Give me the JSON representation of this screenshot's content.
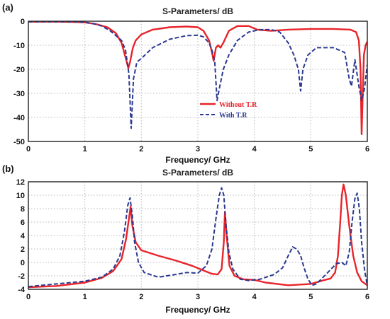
{
  "chart_data": [
    {
      "panel_label": "(a)",
      "type": "line",
      "title": "S-Parameters/ dB",
      "xlabel": "Frequency/ GHz",
      "ylabel": "",
      "xlim": [
        0,
        6
      ],
      "ylim": [
        -50,
        0
      ],
      "xticks": [
        "0",
        "1",
        "2",
        "3",
        "4",
        "5",
        "6"
      ],
      "yticks": [
        "0",
        "-10",
        "-20",
        "-30",
        "-40",
        "-50"
      ],
      "xtick_values": [
        0,
        1,
        2,
        3,
        4,
        5,
        6
      ],
      "ytick_values": [
        0,
        -10,
        -20,
        -30,
        -40,
        -50
      ],
      "grid": true,
      "legend_position": "center-right",
      "series": [
        {
          "name": "Without T.R",
          "color": "#e8242a",
          "style": "solid",
          "points": [
            [
              0,
              -0.2
            ],
            [
              0.5,
              -0.2
            ],
            [
              0.8,
              -0.3
            ],
            [
              1.0,
              -0.5
            ],
            [
              1.2,
              -1.2
            ],
            [
              1.4,
              -2.5
            ],
            [
              1.55,
              -5
            ],
            [
              1.65,
              -9
            ],
            [
              1.72,
              -15
            ],
            [
              1.77,
              -19.5
            ],
            [
              1.8,
              -17
            ],
            [
              1.85,
              -11
            ],
            [
              1.9,
              -8
            ],
            [
              2.0,
              -5.5
            ],
            [
              2.2,
              -3.5
            ],
            [
              2.5,
              -2.5
            ],
            [
              2.8,
              -2.2
            ],
            [
              3.0,
              -2.5
            ],
            [
              3.1,
              -4
            ],
            [
              3.2,
              -8
            ],
            [
              3.25,
              -13
            ],
            [
              3.28,
              -16.5
            ],
            [
              3.32,
              -11
            ],
            [
              3.36,
              -10
            ],
            [
              3.4,
              -11
            ],
            [
              3.45,
              -9
            ],
            [
              3.55,
              -4
            ],
            [
              3.7,
              -2
            ],
            [
              3.9,
              -2
            ],
            [
              4.05,
              -3.5
            ],
            [
              4.3,
              -4
            ],
            [
              4.6,
              -3.5
            ],
            [
              5.0,
              -3.2
            ],
            [
              5.4,
              -3.2
            ],
            [
              5.7,
              -3.5
            ],
            [
              5.8,
              -4.5
            ],
            [
              5.85,
              -8
            ],
            [
              5.88,
              -20
            ],
            [
              5.9,
              -47
            ],
            [
              5.92,
              -30
            ],
            [
              5.94,
              -14
            ],
            [
              5.97,
              -10
            ],
            [
              6.0,
              -8.5
            ]
          ]
        },
        {
          "name": "With T.R",
          "color": "#2b3990",
          "style": "dashed",
          "points": [
            [
              0,
              -0.2
            ],
            [
              0.8,
              -0.2
            ],
            [
              1.0,
              -0.4
            ],
            [
              1.15,
              -1
            ],
            [
              1.3,
              -2
            ],
            [
              1.45,
              -4
            ],
            [
              1.55,
              -6
            ],
            [
              1.65,
              -8
            ],
            [
              1.72,
              -12
            ],
            [
              1.78,
              -22
            ],
            [
              1.82,
              -44.5
            ],
            [
              1.86,
              -24
            ],
            [
              1.92,
              -17
            ],
            [
              2.0,
              -15.5
            ],
            [
              2.2,
              -11
            ],
            [
              2.5,
              -7.5
            ],
            [
              2.8,
              -6
            ],
            [
              3.0,
              -5.8
            ],
            [
              3.1,
              -6.5
            ],
            [
              3.2,
              -9
            ],
            [
              3.25,
              -12
            ],
            [
              3.3,
              -17
            ],
            [
              3.34,
              -33
            ],
            [
              3.38,
              -28
            ],
            [
              3.45,
              -20
            ],
            [
              3.55,
              -14
            ],
            [
              3.7,
              -8
            ],
            [
              3.9,
              -4.5
            ],
            [
              4.1,
              -3.5
            ],
            [
              4.3,
              -3.5
            ],
            [
              4.45,
              -4.5
            ],
            [
              4.6,
              -9
            ],
            [
              4.7,
              -14
            ],
            [
              4.78,
              -20
            ],
            [
              4.82,
              -29
            ],
            [
              4.86,
              -20
            ],
            [
              4.95,
              -14
            ],
            [
              5.1,
              -11
            ],
            [
              5.4,
              -11
            ],
            [
              5.6,
              -13
            ],
            [
              5.68,
              -24
            ],
            [
              5.72,
              -27
            ],
            [
              5.78,
              -16
            ],
            [
              5.85,
              -27
            ],
            [
              5.9,
              -33
            ],
            [
              5.95,
              -28
            ],
            [
              6.0,
              -18
            ]
          ]
        }
      ]
    },
    {
      "panel_label": "(b)",
      "type": "line",
      "title": "S-Parameters/ dB",
      "xlabel": "Frequency/ GHz",
      "ylabel": "",
      "xlim": [
        0,
        6
      ],
      "ylim": [
        -4,
        12
      ],
      "xticks": [
        "0",
        "1",
        "2",
        "3",
        "4",
        "5",
        "6"
      ],
      "yticks": [
        "12",
        "10",
        "8",
        "6",
        "4",
        "2",
        "0",
        "-2",
        "-4"
      ],
      "xtick_values": [
        0,
        1,
        2,
        3,
        4,
        5,
        6
      ],
      "ytick_values": [
        12,
        10,
        8,
        6,
        4,
        2,
        0,
        -2,
        -4
      ],
      "grid": true,
      "series": [
        {
          "name": "Without T.R",
          "color": "#e8242a",
          "style": "solid",
          "points": [
            [
              0,
              -3.7
            ],
            [
              0.5,
              -3.5
            ],
            [
              1.0,
              -3.0
            ],
            [
              1.3,
              -2.3
            ],
            [
              1.5,
              -1.3
            ],
            [
              1.65,
              0.5
            ],
            [
              1.73,
              3.5
            ],
            [
              1.78,
              6.5
            ],
            [
              1.81,
              8.3
            ],
            [
              1.84,
              5.5
            ],
            [
              1.9,
              3
            ],
            [
              2.0,
              1.8
            ],
            [
              2.3,
              1.0
            ],
            [
              2.6,
              0.3
            ],
            [
              2.9,
              -0.5
            ],
            [
              3.1,
              -1.2
            ],
            [
              3.25,
              -1.7
            ],
            [
              3.35,
              -1.8
            ],
            [
              3.42,
              -1
            ],
            [
              3.46,
              3
            ],
            [
              3.48,
              7.5
            ],
            [
              3.51,
              4
            ],
            [
              3.56,
              -0.5
            ],
            [
              3.65,
              -2
            ],
            [
              3.8,
              -2.5
            ],
            [
              4.0,
              -2.6
            ],
            [
              4.2,
              -3
            ],
            [
              4.6,
              -3.4
            ],
            [
              5.0,
              -3.2
            ],
            [
              5.25,
              -2.6
            ],
            [
              5.35,
              -2.4
            ],
            [
              5.43,
              -1.5
            ],
            [
              5.48,
              1
            ],
            [
              5.52,
              6
            ],
            [
              5.55,
              10
            ],
            [
              5.58,
              11.6
            ],
            [
              5.62,
              10
            ],
            [
              5.68,
              5.5
            ],
            [
              5.75,
              1
            ],
            [
              5.82,
              -1.5
            ],
            [
              5.9,
              -2.8
            ],
            [
              6.0,
              -3.4
            ]
          ]
        },
        {
          "name": "With T.R",
          "color": "#2b3990",
          "style": "dashed",
          "points": [
            [
              0,
              -3.6
            ],
            [
              0.5,
              -3.2
            ],
            [
              1.0,
              -2.8
            ],
            [
              1.3,
              -2.2
            ],
            [
              1.5,
              -1
            ],
            [
              1.62,
              1
            ],
            [
              1.7,
              4.5
            ],
            [
              1.76,
              8.5
            ],
            [
              1.8,
              9.6
            ],
            [
              1.84,
              7
            ],
            [
              1.88,
              3
            ],
            [
              1.95,
              0
            ],
            [
              2.05,
              -1.5
            ],
            [
              2.3,
              -2.2
            ],
            [
              2.6,
              -1.8
            ],
            [
              2.8,
              -1.5
            ],
            [
              3.0,
              -1.6
            ],
            [
              3.15,
              -0.5
            ],
            [
              3.25,
              2
            ],
            [
              3.32,
              6.5
            ],
            [
              3.38,
              10
            ],
            [
              3.42,
              11.1
            ],
            [
              3.46,
              10
            ],
            [
              3.5,
              5.5
            ],
            [
              3.55,
              1.5
            ],
            [
              3.62,
              -1
            ],
            [
              3.75,
              -2.5
            ],
            [
              3.9,
              -2.7
            ],
            [
              4.1,
              -2.5
            ],
            [
              4.35,
              -1.8
            ],
            [
              4.5,
              -0.8
            ],
            [
              4.6,
              1
            ],
            [
              4.68,
              2.3
            ],
            [
              4.75,
              2
            ],
            [
              4.82,
              1
            ],
            [
              4.88,
              -0.8
            ],
            [
              4.95,
              -2.5
            ],
            [
              5.02,
              -3.4
            ],
            [
              5.1,
              -3.2
            ],
            [
              5.3,
              -1.5
            ],
            [
              5.45,
              -0.2
            ],
            [
              5.55,
              0
            ],
            [
              5.62,
              -0.5
            ],
            [
              5.68,
              1.5
            ],
            [
              5.73,
              6
            ],
            [
              5.78,
              9.5
            ],
            [
              5.82,
              10.3
            ],
            [
              5.86,
              8
            ],
            [
              5.9,
              3
            ],
            [
              5.95,
              -1
            ],
            [
              6.0,
              -3.5
            ]
          ]
        }
      ]
    }
  ]
}
